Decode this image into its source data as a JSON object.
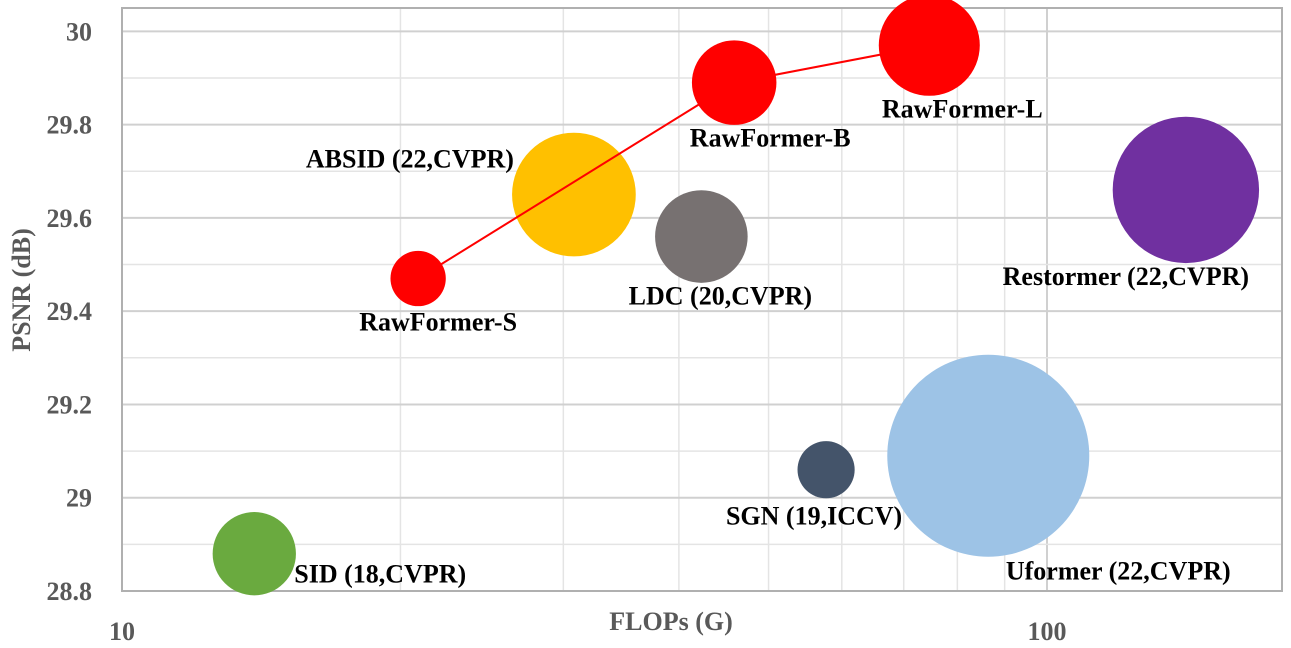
{
  "chart_data": {
    "type": "scatter",
    "subtype": "bubble",
    "title": "",
    "xlabel": "FLOPs (G)",
    "ylabel": "PSNR (dB)",
    "x_scale": "log",
    "xlim": [
      10,
      250
    ],
    "ylim": [
      28.8,
      30.05
    ],
    "x_ticks": [
      10,
      100
    ],
    "x_tick_labels": [
      "10",
      "100"
    ],
    "y_ticks": [
      28.8,
      29,
      29.2,
      29.4,
      29.6,
      29.8,
      30
    ],
    "y_tick_labels": [
      "28.8",
      "29",
      "29.2",
      "29.4",
      "29.6",
      "29.8",
      "30"
    ],
    "grid": true,
    "legend": "none",
    "points": [
      {
        "label": "SID (18,CVPR)",
        "x": 13.9,
        "y": 28.88,
        "size": 0.34,
        "color": "#6aaa3f"
      },
      {
        "label": "ABSID (22,CVPR)",
        "x": 30.8,
        "y": 29.65,
        "size": 0.75,
        "color": "#ffc000"
      },
      {
        "label": "LDC (20,CVPR)",
        "x": 42.3,
        "y": 29.56,
        "size": 0.42,
        "color": "#777171"
      },
      {
        "label": "SGN (19,ICCV)",
        "x": 57.7,
        "y": 29.06,
        "size": 0.16,
        "color": "#44546a"
      },
      {
        "label": "Uformer (22,CVPR)",
        "x": 86.4,
        "y": 29.09,
        "size": 2.0,
        "color": "#9dc3e6"
      },
      {
        "label": "Restormer (22,CVPR)",
        "x": 141.3,
        "y": 29.66,
        "size": 1.05,
        "color": "#7030a0"
      }
    ],
    "series": [
      {
        "name": "",
        "color": "#ff0000",
        "x": [
          20.9,
          45.9,
          74.6
        ],
        "y": [
          29.47,
          29.89,
          29.97
        ],
        "sizes": [
          0.15,
          0.35,
          0.5
        ],
        "labels": [
          "RawFormer-S",
          "RawFormer-B",
          "RawFormer-L"
        ]
      }
    ]
  }
}
